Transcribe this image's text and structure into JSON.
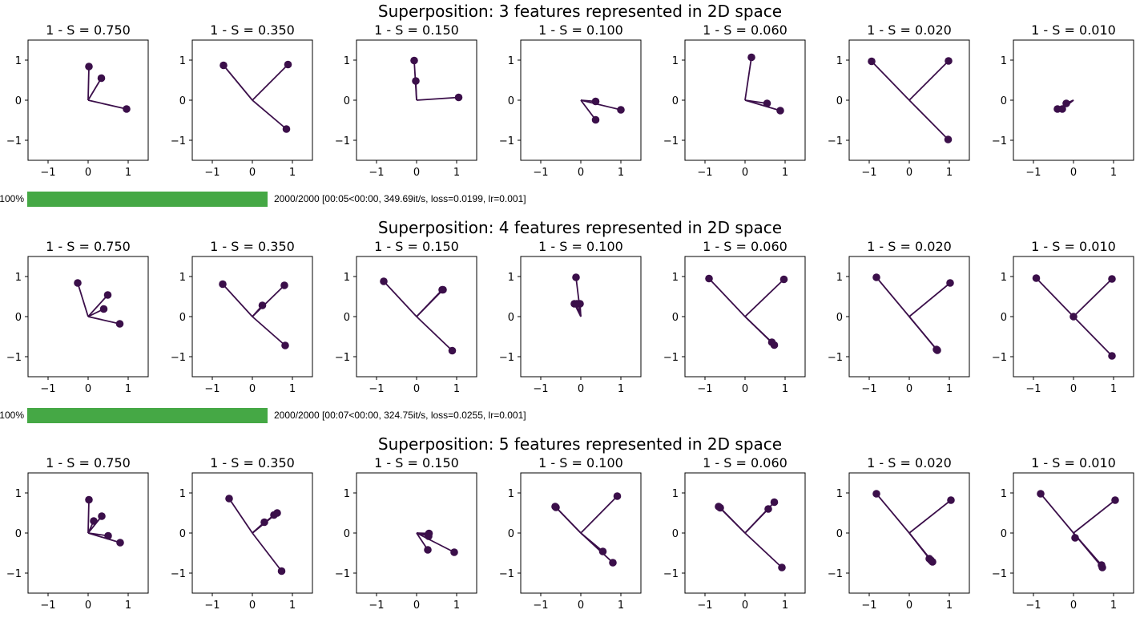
{
  "colors": {
    "line": "#3b0f4a",
    "progress": "#45a845"
  },
  "progress": [
    {
      "percent_label": "100%",
      "fraction": 1.0,
      "text": "2000/2000 [00:05<00:00, 349.69it/s, loss=0.0199, lr=0.001]"
    },
    {
      "percent_label": "100%",
      "fraction": 1.0,
      "text": "2000/2000 [00:07<00:00, 324.75it/s, loss=0.0255, lr=0.001]"
    }
  ],
  "chart_data": [
    {
      "type": "scatter",
      "title": "Superposition: 3 features represented in 2D space",
      "xlim": [
        -1.5,
        1.5
      ],
      "ylim": [
        -1.5,
        1.5
      ],
      "xticks": [
        "−1",
        "0",
        "1"
      ],
      "yticks": [
        "1",
        "0",
        "−1"
      ],
      "panels": [
        {
          "title": "1 - S = 0.750",
          "points": [
            [
              0.02,
              0.84
            ],
            [
              0.33,
              0.55
            ],
            [
              0.96,
              -0.22
            ]
          ]
        },
        {
          "title": "1 - S = 0.350",
          "points": [
            [
              -0.72,
              0.87
            ],
            [
              0.89,
              0.89
            ],
            [
              0.85,
              -0.72
            ]
          ]
        },
        {
          "title": "1 - S = 0.150",
          "points": [
            [
              -0.06,
              0.99
            ],
            [
              -0.02,
              0.48
            ],
            [
              1.05,
              0.07
            ]
          ]
        },
        {
          "title": "1 - S = 0.100",
          "points": [
            [
              0.37,
              -0.03
            ],
            [
              1.0,
              -0.24
            ],
            [
              0.37,
              -0.49
            ]
          ]
        },
        {
          "title": "1 - S = 0.060",
          "points": [
            [
              0.16,
              1.07
            ],
            [
              0.55,
              -0.08
            ],
            [
              0.88,
              -0.26
            ]
          ]
        },
        {
          "title": "1 - S = 0.020",
          "points": [
            [
              -0.94,
              0.97
            ],
            [
              0.98,
              0.98
            ],
            [
              0.97,
              -0.98
            ]
          ]
        },
        {
          "title": "1 - S = 0.010",
          "points": [
            [
              -0.18,
              -0.08
            ],
            [
              -0.28,
              -0.22
            ],
            [
              -0.4,
              -0.22
            ]
          ]
        }
      ]
    },
    {
      "type": "scatter",
      "title": "Superposition: 4 features represented in 2D space",
      "xlim": [
        -1.5,
        1.5
      ],
      "ylim": [
        -1.5,
        1.5
      ],
      "xticks": [
        "−1",
        "0",
        "1"
      ],
      "yticks": [
        "1",
        "0",
        "−1"
      ],
      "panels": [
        {
          "title": "1 - S = 0.750",
          "points": [
            [
              -0.26,
              0.84
            ],
            [
              0.49,
              0.54
            ],
            [
              0.39,
              0.19
            ],
            [
              0.79,
              -0.18
            ]
          ]
        },
        {
          "title": "1 - S = 0.350",
          "points": [
            [
              -0.74,
              0.81
            ],
            [
              0.25,
              0.28
            ],
            [
              0.8,
              0.78
            ],
            [
              0.82,
              -0.72
            ]
          ]
        },
        {
          "title": "1 - S = 0.150",
          "points": [
            [
              -0.82,
              0.88
            ],
            [
              0.66,
              0.67
            ],
            [
              0.64,
              0.67
            ],
            [
              0.89,
              -0.85
            ]
          ]
        },
        {
          "title": "1 - S = 0.100",
          "points": [
            [
              -0.12,
              0.98
            ],
            [
              -0.16,
              0.32
            ],
            [
              -0.02,
              0.32
            ],
            [
              -0.1,
              0.32
            ]
          ]
        },
        {
          "title": "1 - S = 0.060",
          "points": [
            [
              -0.9,
              0.95
            ],
            [
              0.97,
              0.93
            ],
            [
              0.67,
              -0.64
            ],
            [
              0.73,
              -0.71
            ]
          ]
        },
        {
          "title": "1 - S = 0.020",
          "points": [
            [
              -0.82,
              0.98
            ],
            [
              1.02,
              0.84
            ],
            [
              0.68,
              -0.82
            ],
            [
              0.7,
              -0.84
            ]
          ]
        },
        {
          "title": "1 - S = 0.010",
          "points": [
            [
              -0.93,
              0.96
            ],
            [
              0.96,
              0.94
            ],
            [
              0.0,
              0.0
            ],
            [
              0.96,
              -0.98
            ]
          ]
        }
      ]
    },
    {
      "type": "scatter",
      "title": "Superposition: 5 features represented in 2D space",
      "xlim": [
        -1.5,
        1.5
      ],
      "ylim": [
        -1.5,
        1.5
      ],
      "xticks": [
        "−1",
        "0",
        "1"
      ],
      "yticks": [
        "1",
        "0",
        "−1"
      ],
      "panels": [
        {
          "title": "1 - S = 0.750",
          "points": [
            [
              0.02,
              0.83
            ],
            [
              0.34,
              0.42
            ],
            [
              0.14,
              0.3
            ],
            [
              0.5,
              -0.07
            ],
            [
              0.8,
              -0.24
            ]
          ]
        },
        {
          "title": "1 - S = 0.350",
          "points": [
            [
              -0.58,
              0.86
            ],
            [
              0.3,
              0.27
            ],
            [
              0.54,
              0.45
            ],
            [
              0.62,
              0.5
            ],
            [
              0.73,
              -0.95
            ]
          ]
        },
        {
          "title": "1 - S = 0.150",
          "points": [
            [
              0.31,
              -0.01
            ],
            [
              0.29,
              -0.04
            ],
            [
              0.3,
              -0.08
            ],
            [
              0.28,
              -0.42
            ],
            [
              0.94,
              -0.48
            ]
          ]
        },
        {
          "title": "1 - S = 0.100",
          "points": [
            [
              -0.64,
              0.66
            ],
            [
              0.91,
              0.92
            ],
            [
              -0.62,
              0.64
            ],
            [
              0.55,
              -0.46
            ],
            [
              0.8,
              -0.74
            ]
          ]
        },
        {
          "title": "1 - S = 0.060",
          "points": [
            [
              -0.66,
              0.66
            ],
            [
              -0.62,
              0.63
            ],
            [
              0.58,
              0.6
            ],
            [
              0.73,
              0.77
            ],
            [
              0.92,
              -0.86
            ]
          ]
        },
        {
          "title": "1 - S = 0.020",
          "points": [
            [
              -0.82,
              0.98
            ],
            [
              1.04,
              0.82
            ],
            [
              0.5,
              -0.64
            ],
            [
              0.58,
              -0.72
            ],
            [
              0.54,
              -0.68
            ]
          ]
        },
        {
          "title": "1 - S = 0.010",
          "points": [
            [
              -0.82,
              0.98
            ],
            [
              1.04,
              0.82
            ],
            [
              0.04,
              -0.12
            ],
            [
              0.7,
              -0.8
            ],
            [
              0.72,
              -0.86
            ]
          ]
        }
      ]
    }
  ]
}
